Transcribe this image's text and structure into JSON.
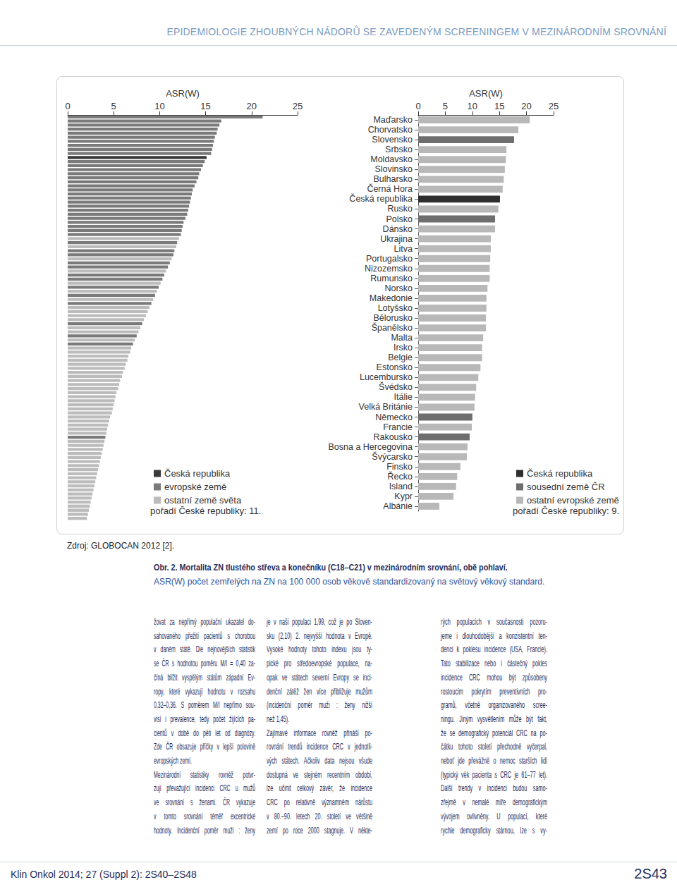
{
  "page": {
    "header": "EPIDEMIOLOGIE ZHOUBNÝCH NÁDORŮ SE ZAVEDENÝM SCREENINGEM V MEZINÁRODNÍM SROVNÁNÍ",
    "source": "Zdroj: GLOBOCAN 2012 [2].",
    "caption": {
      "title": "Obr. 2. Mortalita ZN tlustého střeva a konečníku (C18–C21) v mezinárodním srovnání, obě pohlaví.",
      "text": "ASR(W) počet zemřelých na ZN na 100 000 osob věkově standardizovaný na světový věkový standard."
    },
    "columns": [
      [
        [
          "žovat za nepřímý populační ukazatel do-",
          "sahovaného přežití pacientů s chorobou",
          "v daném státě. Dle nejnovějších statistik",
          "se ČR s hodnotou poměru M/I = 0,40 za-",
          "číná blížit vyspělým státům západní Ev-",
          "ropy, které vykazují hodnotu v rozsahu",
          "0,32–0,36. S poměrem M/I nepřímo sou-",
          "visí i prevalence, tedy počet žijících pa-",
          "cientů v době do pěti let od diagnózy.",
          "Zde ČR obsazuje příčky v lepší polovině",
          "evropských zemí."
        ],
        [
          "Mezinárodní statistiky rovněž potvr-",
          "zují převažující incidenci CRC u mužů",
          "ve srovnání s ženami. ČR vykazuje",
          "v tomto srovnání téměř excentrické",
          "hodnoty. Incidenční poměr muži : ženy"
        ]
      ],
      [
        [
          "je v naší populaci 1,99, což je po Sloven-",
          "sku (2,10) 2. nejvyšší hodnota v Evropě.",
          "Vysoké hodnoty tohoto indexu jsou ty-",
          "pické pro středoevropské populace, na-",
          "opak ve státech severní Evropy se inci-",
          "denční zátěž žen více přibližuje mužům",
          "(incidenční poměr muži : ženy nižší",
          "než 1,45)."
        ],
        [
          "Zajímavé informace rovněž přináší po-",
          "rovnání trendů incidence CRC v jednotli-",
          "vých státech. Ačkoliv data nejsou všude",
          "dostupná ve stejném recentním období,",
          "lze učinit celkový závěr, že incidence",
          "CRC po relativně významném nárůstu",
          "v 80.–90. letech 20. století ve většině",
          "zemí po roce 2000 stagnuje. V někte-"
        ]
      ],
      [
        [
          "rých populacích v současnosti pozoru-",
          "jeme i dlouhodobější a konzistentní ten-",
          "denci k poklesu incidence (USA, Francie).",
          "Tato stabilizace nebo i částečný pokles",
          "incidence CRC mohou být způsobeny",
          "rostoucím pokrytím preventivních pro-",
          "gramů, včetně organizovaného scree-",
          "ningu. Jiným vysvětlením může být fakt,",
          "že se demografický potenciál CRC na po-",
          "čátku tohoto století přechodně vyčerpal,",
          "neboť jde převážně o nemoc starších lidí",
          "(typický věk pacienta s CRC je 61–77 let).",
          "Další trendy v incidenci budou samo-",
          "zřejmě v nemalé míře demografickým",
          "vývojem ovlivněny. U populací, které",
          "rychle demograficky stárnou, lze s vy-"
        ]
      ]
    ],
    "footer": {
      "journal": "Klin Onkol 2014; 27 (Suppl 2): 2S40–2S48",
      "page": "2S43"
    }
  },
  "chart_data": [
    {
      "type": "bar",
      "orientation": "horizontal",
      "xlabel": "ASR(W)",
      "categories": [
        null,
        null,
        null,
        null,
        null,
        null,
        null,
        null,
        null,
        null,
        null,
        null,
        null,
        null,
        null,
        null,
        null,
        null,
        null,
        null,
        null,
        null,
        null,
        null,
        null,
        null,
        null,
        null,
        null,
        null,
        null,
        null,
        null,
        null,
        null,
        null,
        null,
        null,
        null,
        null,
        null,
        null,
        null,
        null,
        null,
        null,
        null,
        null,
        null,
        null,
        null,
        null,
        null,
        null,
        null,
        null,
        null,
        null,
        null,
        null,
        null,
        null,
        null,
        null,
        null,
        null,
        null,
        null,
        null,
        null,
        null,
        null,
        null,
        null,
        null,
        null,
        null,
        null,
        null,
        null,
        null,
        null,
        null,
        null,
        null,
        null,
        null,
        null,
        null,
        null,
        null,
        null,
        null,
        null,
        null,
        null,
        null,
        null,
        null,
        null
      ],
      "series": [
        {
          "name": "Česká republika",
          "color": "#3a3a3a",
          "values": [
            null,
            null,
            null,
            null,
            null,
            null,
            null,
            null,
            null,
            null,
            15.1,
            null,
            null,
            null,
            null,
            null,
            null,
            null,
            null,
            null,
            null,
            null,
            null,
            null,
            null,
            null,
            null,
            null,
            null,
            null,
            null,
            null,
            null,
            null,
            null,
            null,
            null,
            null,
            null,
            null,
            null,
            null,
            null,
            null,
            null,
            null,
            null,
            null,
            null,
            null,
            null,
            null,
            null,
            null,
            null,
            null,
            null,
            null,
            null,
            null,
            null,
            null,
            null,
            null,
            null,
            null,
            null,
            null,
            null,
            null,
            null,
            null,
            null,
            null,
            null,
            null,
            null,
            null,
            null,
            null,
            null,
            null,
            null,
            null,
            null,
            null,
            null,
            null,
            null,
            null,
            null,
            null,
            null,
            null,
            null,
            null,
            null,
            null,
            null,
            null
          ]
        },
        {
          "name": "evropské země",
          "color": "#7a7a7a",
          "values": [
            21.2,
            16.7,
            16.5,
            16.3,
            16.2,
            16.0,
            15.9,
            15.8,
            15.7,
            15.6,
            null,
            14.9,
            14.7,
            14.5,
            14.3,
            14.2,
            14.0,
            13.8,
            13.6,
            13.5,
            13.4,
            13.3,
            13.2,
            13.1,
            13.0,
            12.8,
            12.6,
            12.5,
            12.4,
            12.3,
            null,
            11.9,
            null,
            11.6,
            11.5,
            null,
            11.1,
            10.9,
            null,
            10.5,
            10.3,
            null,
            9.9,
            null,
            9.5,
            null,
            9.1,
            null,
            null,
            null,
            null,
            8.1,
            null,
            null,
            7.5,
            null,
            7.1,
            null,
            null,
            null,
            null,
            null,
            null,
            null,
            null,
            null,
            null,
            null,
            null,
            null,
            null,
            null,
            null,
            null,
            null,
            null,
            null,
            null,
            null,
            4.1,
            null,
            null,
            null,
            null,
            null,
            null,
            null,
            null,
            null,
            null,
            null,
            null,
            null,
            null,
            null,
            null,
            null,
            null,
            null,
            null
          ]
        },
        {
          "name": "ostatní země světa",
          "color": "#bcbcbc",
          "values": [
            null,
            null,
            null,
            null,
            null,
            null,
            null,
            null,
            null,
            null,
            null,
            null,
            null,
            null,
            null,
            null,
            null,
            null,
            null,
            null,
            null,
            null,
            null,
            null,
            null,
            null,
            null,
            null,
            null,
            null,
            12.1,
            null,
            11.8,
            null,
            null,
            11.3,
            null,
            null,
            10.7,
            null,
            null,
            10.1,
            null,
            9.7,
            null,
            9.3,
            null,
            8.9,
            8.7,
            8.5,
            8.3,
            null,
            7.9,
            7.7,
            null,
            7.3,
            null,
            6.9,
            6.8,
            6.6,
            6.5,
            6.3,
            6.2,
            6.0,
            5.9,
            5.7,
            5.6,
            5.5,
            5.3,
            5.2,
            5.1,
            5.0,
            4.9,
            4.8,
            4.6,
            4.5,
            4.4,
            4.3,
            4.2,
            null,
            4.0,
            3.9,
            3.8,
            3.7,
            3.6,
            3.5,
            3.4,
            3.3,
            3.2,
            3.1,
            3.0,
            2.9,
            2.8,
            2.7,
            2.6,
            2.5,
            2.4,
            2.3,
            2.2,
            2.1
          ]
        }
      ],
      "xlim": [
        0,
        25
      ],
      "xticks": [
        0,
        5,
        10,
        15,
        20,
        25
      ],
      "grid": false,
      "legend": "lower right",
      "tick_labels": "x",
      "annotation": "pořadí České republiky: 11."
    },
    {
      "type": "bar",
      "orientation": "horizontal",
      "xlabel": "ASR(W)",
      "categories": [
        "Maďarsko",
        "Chorvatsko",
        "Slovensko",
        "Srbsko",
        "Moldavsko",
        "Slovinsko",
        "Bulharsko",
        "Černá Hora",
        "Česká republika",
        "Rusko",
        "Polsko",
        "Dánsko",
        "Ukrajina",
        "Litva",
        "Portugalsko",
        "Nizozemsko",
        "Rumunsko",
        "Norsko",
        "Makedonie",
        "Lotyšsko",
        "Bělorusko",
        "Španělsko",
        "Malta",
        "Irsko",
        "Belgie",
        "Estonsko",
        "Lucembursko",
        "Švédsko",
        "Itálie",
        "Velká Británie",
        "Německo",
        "Francie",
        "Rakousko",
        "Bosna a Hercegovina",
        "Švýcarsko",
        "Finsko",
        "Řecko",
        "Island",
        "Kypr",
        "Albánie"
      ],
      "series": [
        {
          "name": "Česká republika",
          "color": "#2e2e2e",
          "values": [
            null,
            null,
            null,
            null,
            null,
            null,
            null,
            null,
            15.1,
            null,
            null,
            null,
            null,
            null,
            null,
            null,
            null,
            null,
            null,
            null,
            null,
            null,
            null,
            null,
            null,
            null,
            null,
            null,
            null,
            null,
            null,
            null,
            null,
            null,
            null,
            null,
            null,
            null,
            null,
            null
          ]
        },
        {
          "name": "sousední země ČR",
          "color": "#6e6e6e",
          "values": [
            null,
            null,
            17.7,
            null,
            null,
            null,
            null,
            null,
            null,
            null,
            14.2,
            null,
            null,
            null,
            null,
            null,
            null,
            null,
            null,
            null,
            null,
            null,
            null,
            null,
            null,
            null,
            null,
            null,
            null,
            null,
            10.0,
            null,
            9.5,
            null,
            null,
            null,
            null,
            null,
            null,
            null
          ]
        },
        {
          "name": "ostatní evropské země",
          "color": "#b8b8b8",
          "values": [
            20.6,
            18.5,
            null,
            16.3,
            16.2,
            16.0,
            15.8,
            15.6,
            null,
            14.8,
            null,
            14.2,
            13.4,
            13.4,
            13.3,
            13.2,
            13.2,
            12.8,
            12.6,
            12.6,
            12.5,
            12.5,
            12.0,
            11.8,
            11.8,
            11.5,
            11.1,
            10.7,
            10.5,
            10.4,
            null,
            9.9,
            null,
            9.1,
            9.0,
            7.8,
            7.2,
            7.0,
            6.5,
            3.9
          ]
        }
      ],
      "xlim": [
        0,
        25
      ],
      "xticks": [
        0,
        5,
        10,
        15,
        20,
        25
      ],
      "grid": false,
      "legend": "lower right",
      "annotation": "pořadí České republiky: 9."
    }
  ]
}
